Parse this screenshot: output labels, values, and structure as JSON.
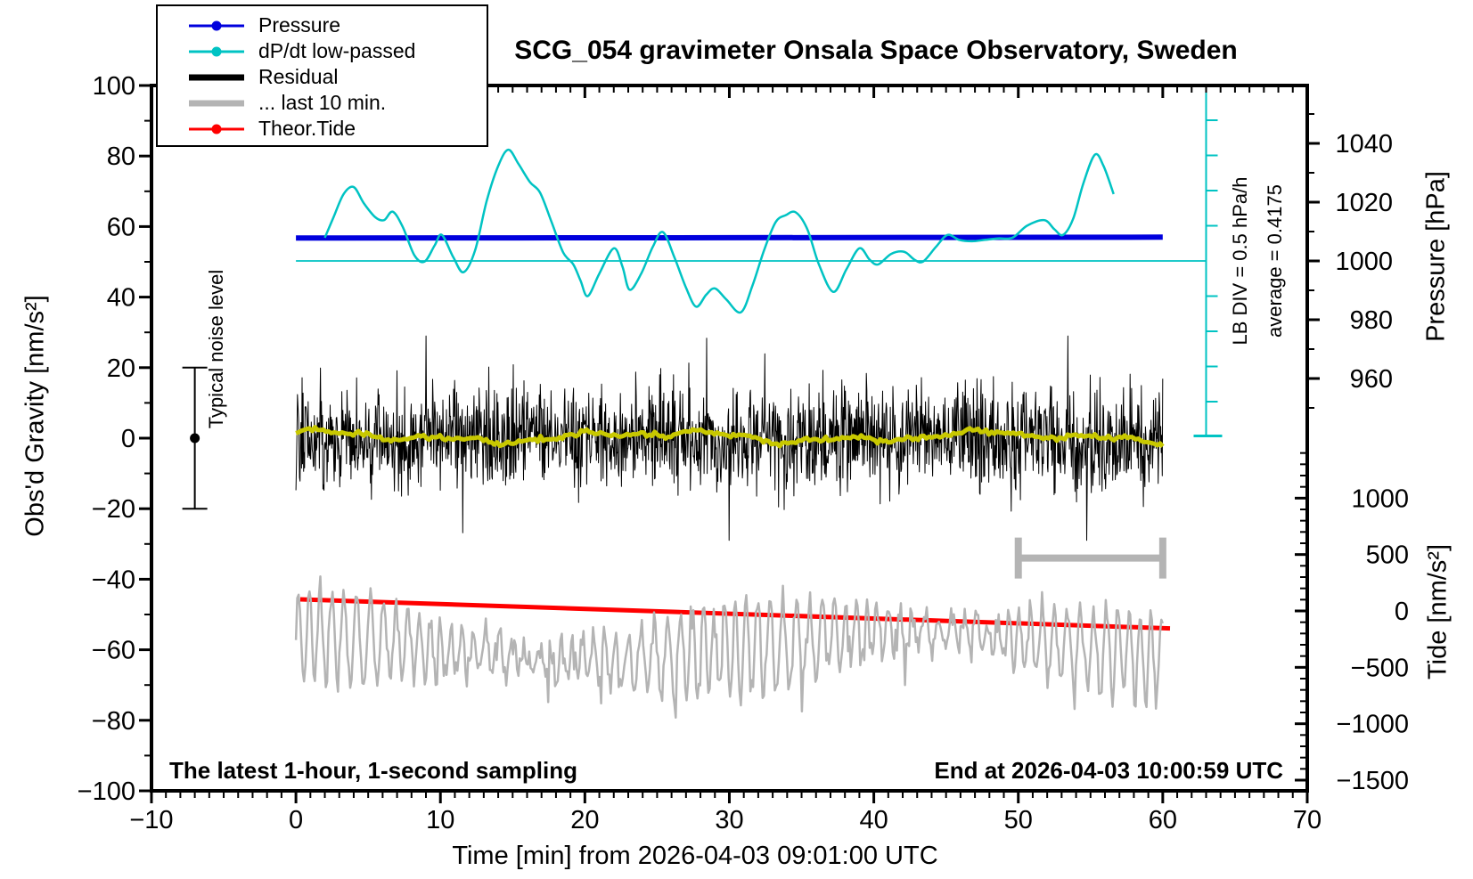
{
  "title": "SCG_054 gravimeter Onsala Space Observatory, Sweden",
  "colors": {
    "pressure_blue": "#0000dd",
    "dpdt_cyan": "#00c3c3",
    "residual_black": "#000000",
    "last10_gray": "#b4b4b4",
    "tide_red": "#ff0000",
    "lowpass_yellow": "#c8c800",
    "frame": "#000000",
    "background": "#ffffff"
  },
  "legend": {
    "items": [
      {
        "label": "Pressure",
        "color": "#0000dd",
        "swatch": "line-dot"
      },
      {
        "label": "dP/dt low-passed",
        "color": "#00c3c3",
        "swatch": "line-dot"
      },
      {
        "label": "Residual",
        "color": "#000000",
        "swatch": "bar"
      },
      {
        "label": "... last 10 min.",
        "color": "#b4b4b4",
        "swatch": "bar"
      },
      {
        "label": "Theor.Tide",
        "color": "#ff0000",
        "swatch": "line-dot"
      }
    ]
  },
  "annotations": {
    "noise_label": "Typical noise level",
    "lb_div": "LB DIV = 0.5 hPa/h",
    "average": "average = 0.4175",
    "bottom_left": "The latest 1-hour, 1-second sampling",
    "bottom_right": "End at 2026-04-03 10:00:59 UTC"
  },
  "axes": {
    "x": {
      "title": "Time [min] from 2026-04-03 09:01:00 UTC",
      "min": -10,
      "max": 70,
      "major_ticks": [
        -10,
        0,
        10,
        20,
        30,
        40,
        50,
        60,
        70
      ],
      "minor_step": 1
    },
    "gravity": {
      "title": "Obs'd Gravity [nm/s²]",
      "min": -100,
      "max": 100,
      "major_ticks": [
        100,
        80,
        60,
        40,
        20,
        0,
        -20,
        -40,
        -60,
        -80,
        -100
      ],
      "minor_step": 10
    },
    "pressure": {
      "title": "Pressure [hPa]",
      "major_ticks": [
        1040,
        1020,
        1000,
        980,
        960
      ],
      "minor_range": [
        950,
        1050
      ],
      "minor_step": 10
    },
    "tide": {
      "title": "Tide [nm/s²]",
      "major_ticks": [
        1000,
        500,
        0,
        -500,
        -1000,
        -1500
      ],
      "minor_range": [
        -1500,
        1400
      ],
      "minor_step": 100
    }
  },
  "chart_data": {
    "type": "line",
    "title": "SCG_054 gravimeter Onsala Space Observatory, Sweden",
    "xlabel": "Time [min] from 2026-04-03 09:01:00 UTC",
    "x_range_min": [
      -10,
      70
    ],
    "series": [
      {
        "name": "Pressure",
        "axis": "pressure_hPa",
        "color": "#0000dd",
        "width": 6,
        "points": [
          [
            0,
            1007.8
          ],
          [
            15,
            1007.85
          ],
          [
            30,
            1007.9
          ],
          [
            45,
            1008.0
          ],
          [
            60,
            1008.1
          ]
        ]
      },
      {
        "name": "dP/dt low-passed",
        "axis": "dpdt_hPa_per_h",
        "color": "#00c3c3",
        "width": 2.5,
        "points": [
          [
            2.0,
            0.33
          ],
          [
            2.6,
            0.62
          ],
          [
            3.3,
            0.95
          ],
          [
            4.0,
            1.05
          ],
          [
            4.7,
            0.82
          ],
          [
            5.5,
            0.62
          ],
          [
            6.1,
            0.58
          ],
          [
            6.7,
            0.7
          ],
          [
            7.4,
            0.48
          ],
          [
            8.2,
            0.08
          ],
          [
            8.9,
            -0.01
          ],
          [
            9.6,
            0.22
          ],
          [
            10.1,
            0.37
          ],
          [
            10.9,
            0.05
          ],
          [
            11.6,
            -0.16
          ],
          [
            12.4,
            0.15
          ],
          [
            13.2,
            0.85
          ],
          [
            14.0,
            1.35
          ],
          [
            14.7,
            1.58
          ],
          [
            15.4,
            1.38
          ],
          [
            16.2,
            1.12
          ],
          [
            16.9,
            0.97
          ],
          [
            17.7,
            0.55
          ],
          [
            18.5,
            0.12
          ],
          [
            19.2,
            -0.05
          ],
          [
            19.7,
            -0.28
          ],
          [
            20.2,
            -0.5
          ],
          [
            21.0,
            -0.18
          ],
          [
            22.0,
            0.18
          ],
          [
            22.6,
            -0.08
          ],
          [
            23.1,
            -0.41
          ],
          [
            23.9,
            -0.18
          ],
          [
            24.7,
            0.2
          ],
          [
            25.4,
            0.41
          ],
          [
            26.2,
            0.05
          ],
          [
            27.0,
            -0.38
          ],
          [
            27.7,
            -0.65
          ],
          [
            28.4,
            -0.48
          ],
          [
            29.0,
            -0.39
          ],
          [
            29.8,
            -0.55
          ],
          [
            30.8,
            -0.73
          ],
          [
            31.6,
            -0.35
          ],
          [
            32.4,
            0.15
          ],
          [
            33.2,
            0.55
          ],
          [
            33.9,
            0.65
          ],
          [
            34.6,
            0.69
          ],
          [
            35.4,
            0.45
          ],
          [
            36.2,
            -0.05
          ],
          [
            37.2,
            -0.44
          ],
          [
            38.1,
            -0.12
          ],
          [
            39.0,
            0.18
          ],
          [
            39.7,
            0.02
          ],
          [
            40.3,
            -0.05
          ],
          [
            41.2,
            0.1
          ],
          [
            42.1,
            0.13
          ],
          [
            42.8,
            0.02
          ],
          [
            43.4,
            -0.01
          ],
          [
            44.3,
            0.2
          ],
          [
            45.1,
            0.37
          ],
          [
            45.9,
            0.3
          ],
          [
            46.8,
            0.28
          ],
          [
            47.7,
            0.3
          ],
          [
            48.6,
            0.32
          ],
          [
            49.6,
            0.33
          ],
          [
            50.6,
            0.5
          ],
          [
            51.8,
            0.58
          ],
          [
            52.5,
            0.45
          ],
          [
            53.1,
            0.37
          ],
          [
            53.8,
            0.6
          ],
          [
            54.5,
            1.1
          ],
          [
            55.3,
            1.51
          ],
          [
            55.9,
            1.35
          ],
          [
            56.6,
            0.95
          ]
        ]
      },
      {
        "name": "Theor.Tide",
        "axis": "tide_nms2",
        "color": "#ff0000",
        "width": 5,
        "points": [
          [
            0.3,
            103
          ],
          [
            60.5,
            -155
          ]
        ]
      },
      {
        "name": "Residual",
        "axis": "gravity_nms2",
        "color": "#000000",
        "width": 1,
        "generated": {
          "kind": "white-noise",
          "span_min": [
            0,
            60
          ],
          "n": 1700,
          "mean": 0,
          "std": 7.3,
          "spike_chance": 0.025,
          "clip": 29,
          "seed": 20260403
        }
      },
      {
        "name": "Residual low-passed",
        "axis": "gravity_nms2",
        "color": "#c8c800",
        "width": 5,
        "generated": {
          "kind": "slow-wiggle",
          "span_min": [
            0,
            60
          ],
          "n": 320,
          "mean": 0.3,
          "amp": 1.8,
          "seed": 77
        }
      },
      {
        "name": "... last 10 min.",
        "axis": "gravity_nms2",
        "color": "#b4b4b4",
        "width": 2.5,
        "generated": {
          "kind": "quasi-periodic",
          "span_min": [
            0,
            60
          ],
          "n": 640,
          "mean": -59,
          "amp": 13,
          "clip": [
            -81,
            -37
          ],
          "seed": 991
        }
      }
    ],
    "reference_lines": [
      {
        "name": "dpdt-zero-line",
        "axis": "dpdt_hPa_per_h",
        "value": 0,
        "span_min": [
          0,
          63
        ],
        "color": "#00c3c3",
        "width": 1.8
      }
    ],
    "scale_bar": {
      "name": "dpdt-scale-bar",
      "x_min": 63,
      "div_hPa_per_h": 0.5,
      "label": "LB DIV = 0.5 hPa/h",
      "average_hPa_per_h": 0.4175,
      "color": "#00c3c3"
    },
    "window_bar": {
      "name": "last-10-min-window",
      "span_min": [
        50,
        60
      ],
      "gravity_level": -34,
      "color": "#b4b4b4"
    },
    "noise_errorbar": {
      "name": "typical-noise-level",
      "x_min": -7,
      "center": 0,
      "half_range": 20,
      "label": "Typical noise level"
    }
  }
}
